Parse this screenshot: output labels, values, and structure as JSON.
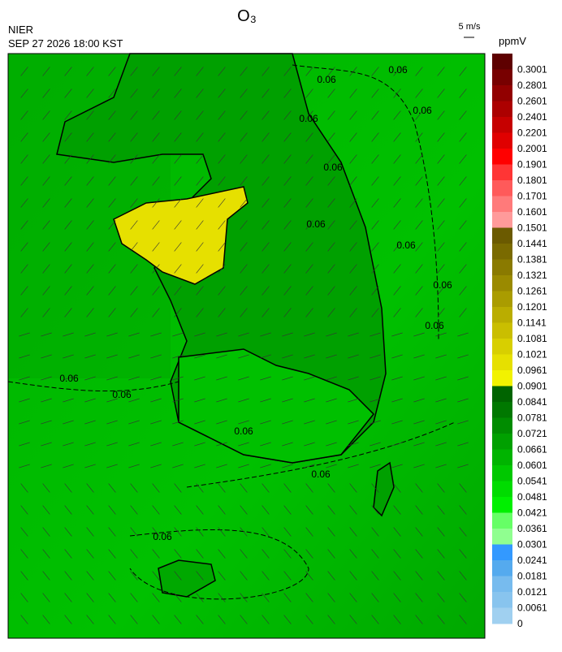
{
  "header": {
    "title": "O₃",
    "agency": "NIER",
    "datetime": "SEP 27 2026 18:00 KST",
    "wind_scale": "5 m/s"
  },
  "colorbar": {
    "unit": "ppmV",
    "levels": [
      0.3001,
      0.2801,
      0.2601,
      0.2401,
      0.2201,
      0.2001,
      0.1901,
      0.1801,
      0.1701,
      0.1601,
      0.1501,
      0.1441,
      0.1381,
      0.1321,
      0.1261,
      0.1201,
      0.1141,
      0.1081,
      0.1021,
      0.0961,
      0.0901,
      0.0841,
      0.0781,
      0.0721,
      0.0661,
      0.0601,
      0.0541,
      0.0481,
      0.0421,
      0.0361,
      0.0301,
      0.0241,
      0.0181,
      0.0121,
      0.0061,
      0
    ],
    "colors": [
      "#5e0000",
      "#780000",
      "#920000",
      "#ac0000",
      "#c60000",
      "#e00000",
      "#ff0000",
      "#ff3535",
      "#ff5a5a",
      "#ff7a7a",
      "#ff9a9a",
      "#6b5a00",
      "#7a6a00",
      "#8a7a00",
      "#9a8a00",
      "#aa9c00",
      "#baad00",
      "#cabe00",
      "#d8cf00",
      "#e6e000",
      "#f2f200",
      "#006400",
      "#007800",
      "#008c00",
      "#00a000",
      "#00b400",
      "#00c800",
      "#00dc00",
      "#00f000",
      "#66ff66",
      "#90ff90",
      "#3399ff",
      "#55aaee",
      "#77bbee",
      "#88c4ee",
      "#a0d0f0"
    ]
  },
  "map": {
    "contour_labels": [
      "0.06",
      "0.06",
      "0.06",
      "0.06",
      "0.06",
      "0.06",
      "0.06",
      "0.06",
      "0.06",
      "0.06",
      "0.06",
      "0.06",
      "0.06",
      "0.06"
    ]
  }
}
